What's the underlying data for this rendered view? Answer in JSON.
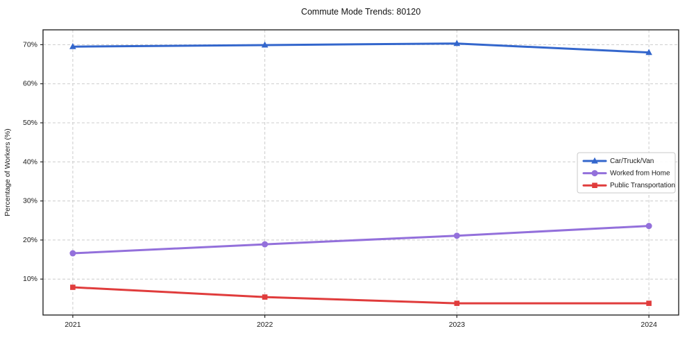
{
  "chart_data": {
    "type": "line",
    "title": "Commute Mode Trends: 80120",
    "xlabel": "",
    "ylabel": "Percentage of Workers (%)",
    "categories": [
      2021,
      2022,
      2023,
      2024
    ],
    "series": [
      {
        "name": "Car/Truck/Van",
        "values": [
          69.5,
          69.9,
          70.3,
          68.0
        ],
        "color": "#3366cc",
        "marker": "triangle"
      },
      {
        "name": "Worked from Home",
        "values": [
          16.6,
          18.9,
          21.1,
          23.6
        ],
        "color": "#9370db",
        "marker": "circle"
      },
      {
        "name": "Public Transportation",
        "values": [
          7.9,
          5.4,
          3.8,
          3.8
        ],
        "color": "#e03c3c",
        "marker": "square"
      }
    ],
    "xlim": [
      2020.845,
      2024.155
    ],
    "ylim": [
      0.8,
      73.8
    ],
    "yticks": [
      10,
      20,
      30,
      40,
      50,
      60,
      70
    ],
    "ytick_suffix": "%",
    "grid": true,
    "grid_style": "dashed",
    "legend_position": "center-right",
    "colors": {
      "grid": "#cccccc",
      "frame": "#262626",
      "text": "#1a1a1a",
      "legend_border": "#c9c9c9",
      "background": "#ffffff"
    }
  }
}
